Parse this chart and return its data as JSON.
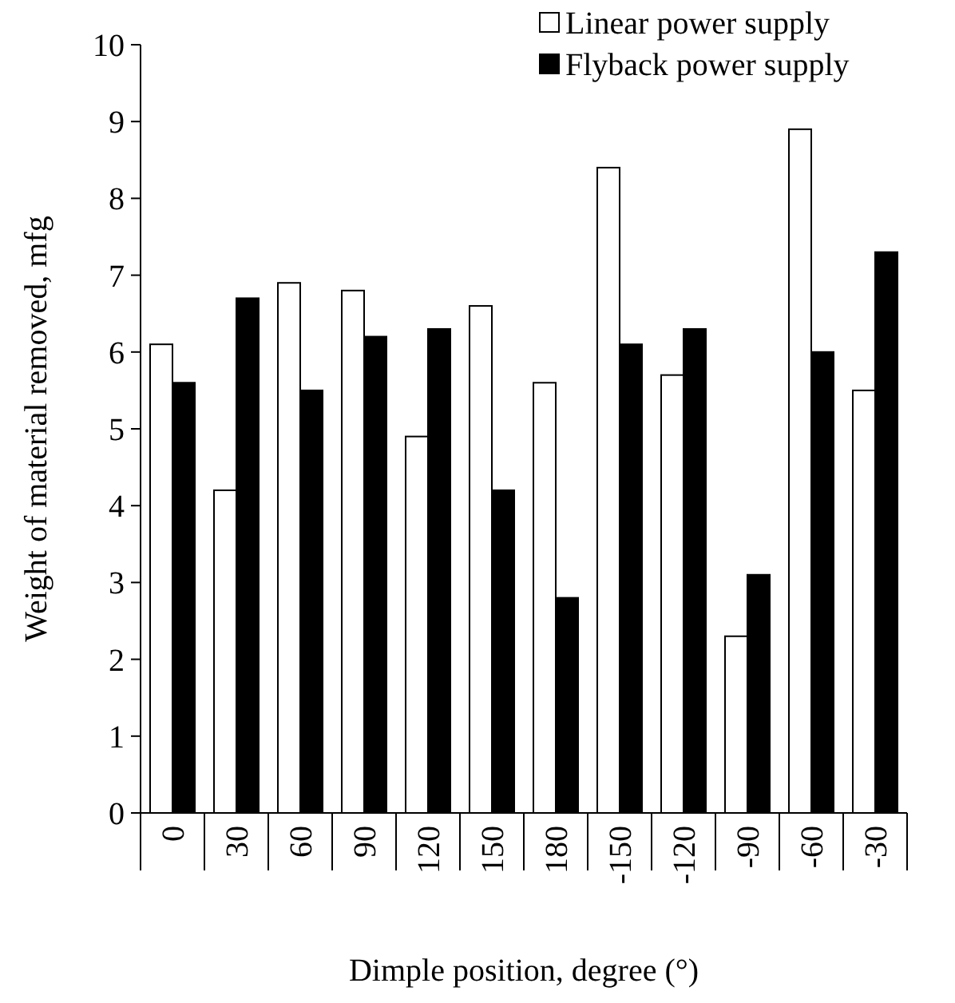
{
  "chart_data": {
    "type": "bar",
    "xlabel": "Dimple position, degree (°)",
    "ylabel": "Weight of material removed, mfg",
    "categories": [
      "0",
      "30",
      "60",
      "90",
      "120",
      "150",
      "180",
      "-150",
      "-120",
      "-90",
      "-60",
      "-30"
    ],
    "series": [
      {
        "name": "Linear power supply",
        "color": "#ffffff",
        "values": [
          6.1,
          4.2,
          6.9,
          6.8,
          4.9,
          6.6,
          5.6,
          8.4,
          5.7,
          2.3,
          8.9,
          5.5
        ]
      },
      {
        "name": "Flyback power supply",
        "color": "#000000",
        "values": [
          5.6,
          6.7,
          5.5,
          6.2,
          6.3,
          4.2,
          2.8,
          6.1,
          6.3,
          3.1,
          6.0,
          7.3
        ]
      }
    ],
    "ylim": [
      0,
      10
    ],
    "yticks": [
      0,
      1,
      2,
      3,
      4,
      5,
      6,
      7,
      8,
      9,
      10
    ],
    "grid": false,
    "legend": "top right"
  }
}
